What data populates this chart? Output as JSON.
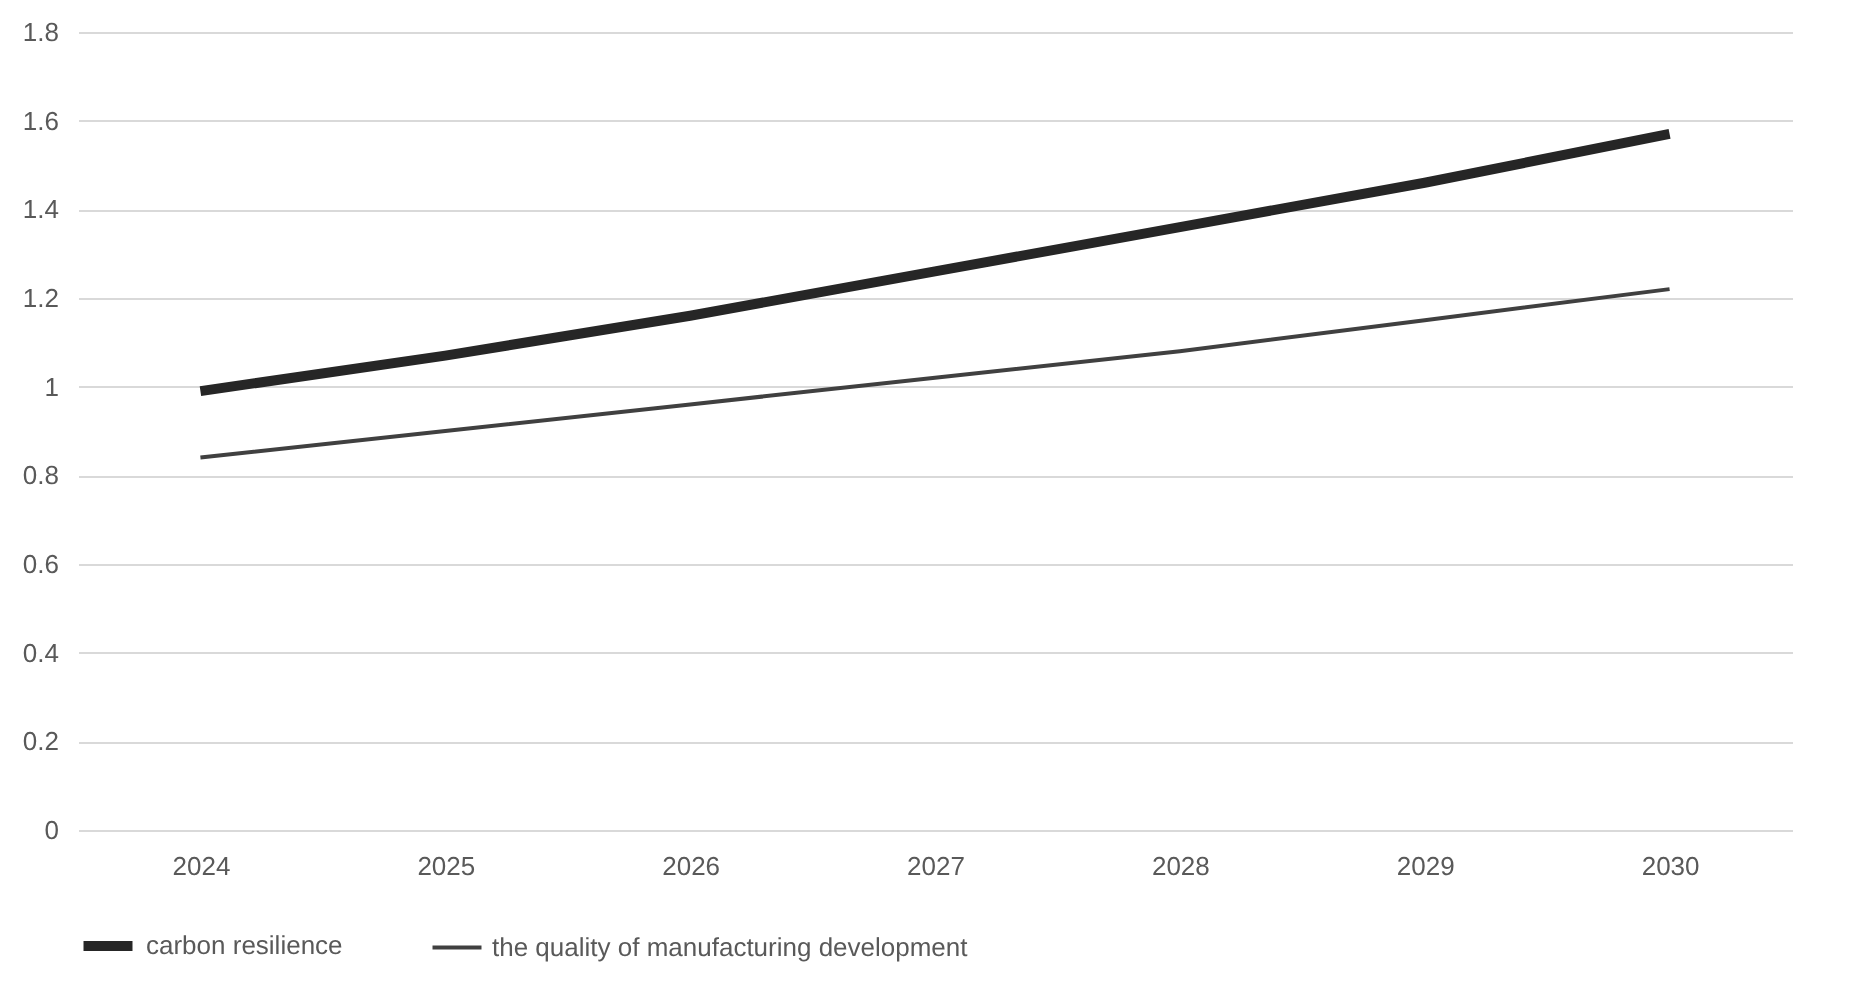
{
  "chart_data": {
    "type": "line",
    "categories": [
      "2024",
      "2025",
      "2026",
      "2027",
      "2028",
      "2029",
      "2030"
    ],
    "series": [
      {
        "name": "carbon resilience",
        "color": "#262626",
        "values": [
          0.99,
          1.07,
          1.16,
          1.26,
          1.36,
          1.46,
          1.57
        ]
      },
      {
        "name": "the quality of manufacturing development",
        "color": "#404040",
        "values": [
          0.84,
          0.9,
          0.96,
          1.02,
          1.08,
          1.15,
          1.22
        ]
      }
    ],
    "ylim": [
      0,
      1.8
    ],
    "yticks": [
      0,
      0.2,
      0.4,
      0.6,
      0.8,
      1,
      1.2,
      1.4,
      1.6,
      1.8
    ],
    "grid": "y",
    "legend": "bottom",
    "marker": "none",
    "line_style": "solid"
  }
}
